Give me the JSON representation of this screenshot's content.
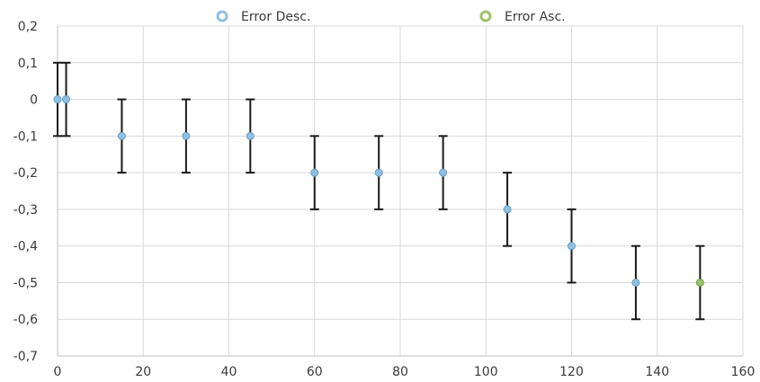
{
  "chart_data": {
    "type": "scatter",
    "grid": true,
    "legend_position": "top",
    "xlim": [
      0,
      160
    ],
    "ylim": [
      -0.7,
      0.2
    ],
    "x_ticks": [
      {
        "value": 0,
        "label": "0"
      },
      {
        "value": 20,
        "label": "20"
      },
      {
        "value": 40,
        "label": "40"
      },
      {
        "value": 60,
        "label": "60"
      },
      {
        "value": 80,
        "label": "80"
      },
      {
        "value": 100,
        "label": "100"
      },
      {
        "value": 120,
        "label": "120"
      },
      {
        "value": 140,
        "label": "140"
      },
      {
        "value": 160,
        "label": "160"
      }
    ],
    "y_ticks": [
      {
        "value": 0.2,
        "label": "0,2"
      },
      {
        "value": 0.1,
        "label": "0,1"
      },
      {
        "value": 0,
        "label": "0"
      },
      {
        "value": -0.1,
        "label": "-0,1"
      },
      {
        "value": -0.2,
        "label": "-0,2"
      },
      {
        "value": -0.3,
        "label": "-0,3"
      },
      {
        "value": -0.4,
        "label": "-0,4"
      },
      {
        "value": -0.5,
        "label": "-0,5"
      },
      {
        "value": -0.6,
        "label": "-0,6"
      },
      {
        "value": -0.7,
        "label": "-0,7"
      }
    ],
    "error_bar": 0.1,
    "series": [
      {
        "name": "Error Desc.",
        "color": "#8fc0de",
        "stroke": "#5f9fc6",
        "points": [
          {
            "x": 0,
            "y": 0
          },
          {
            "x": 2,
            "y": 0
          },
          {
            "x": 15,
            "y": -0.1
          },
          {
            "x": 30,
            "y": -0.1
          },
          {
            "x": 45,
            "y": -0.1
          },
          {
            "x": 60,
            "y": -0.2
          },
          {
            "x": 75,
            "y": -0.2
          },
          {
            "x": 90,
            "y": -0.2
          },
          {
            "x": 105,
            "y": -0.3
          },
          {
            "x": 120,
            "y": -0.4
          },
          {
            "x": 135,
            "y": -0.5
          }
        ]
      },
      {
        "name": "Error Asc.",
        "color": "#9bc46a",
        "stroke": "#6e9a3e",
        "points": [
          {
            "x": 150,
            "y": -0.5
          }
        ]
      }
    ]
  }
}
